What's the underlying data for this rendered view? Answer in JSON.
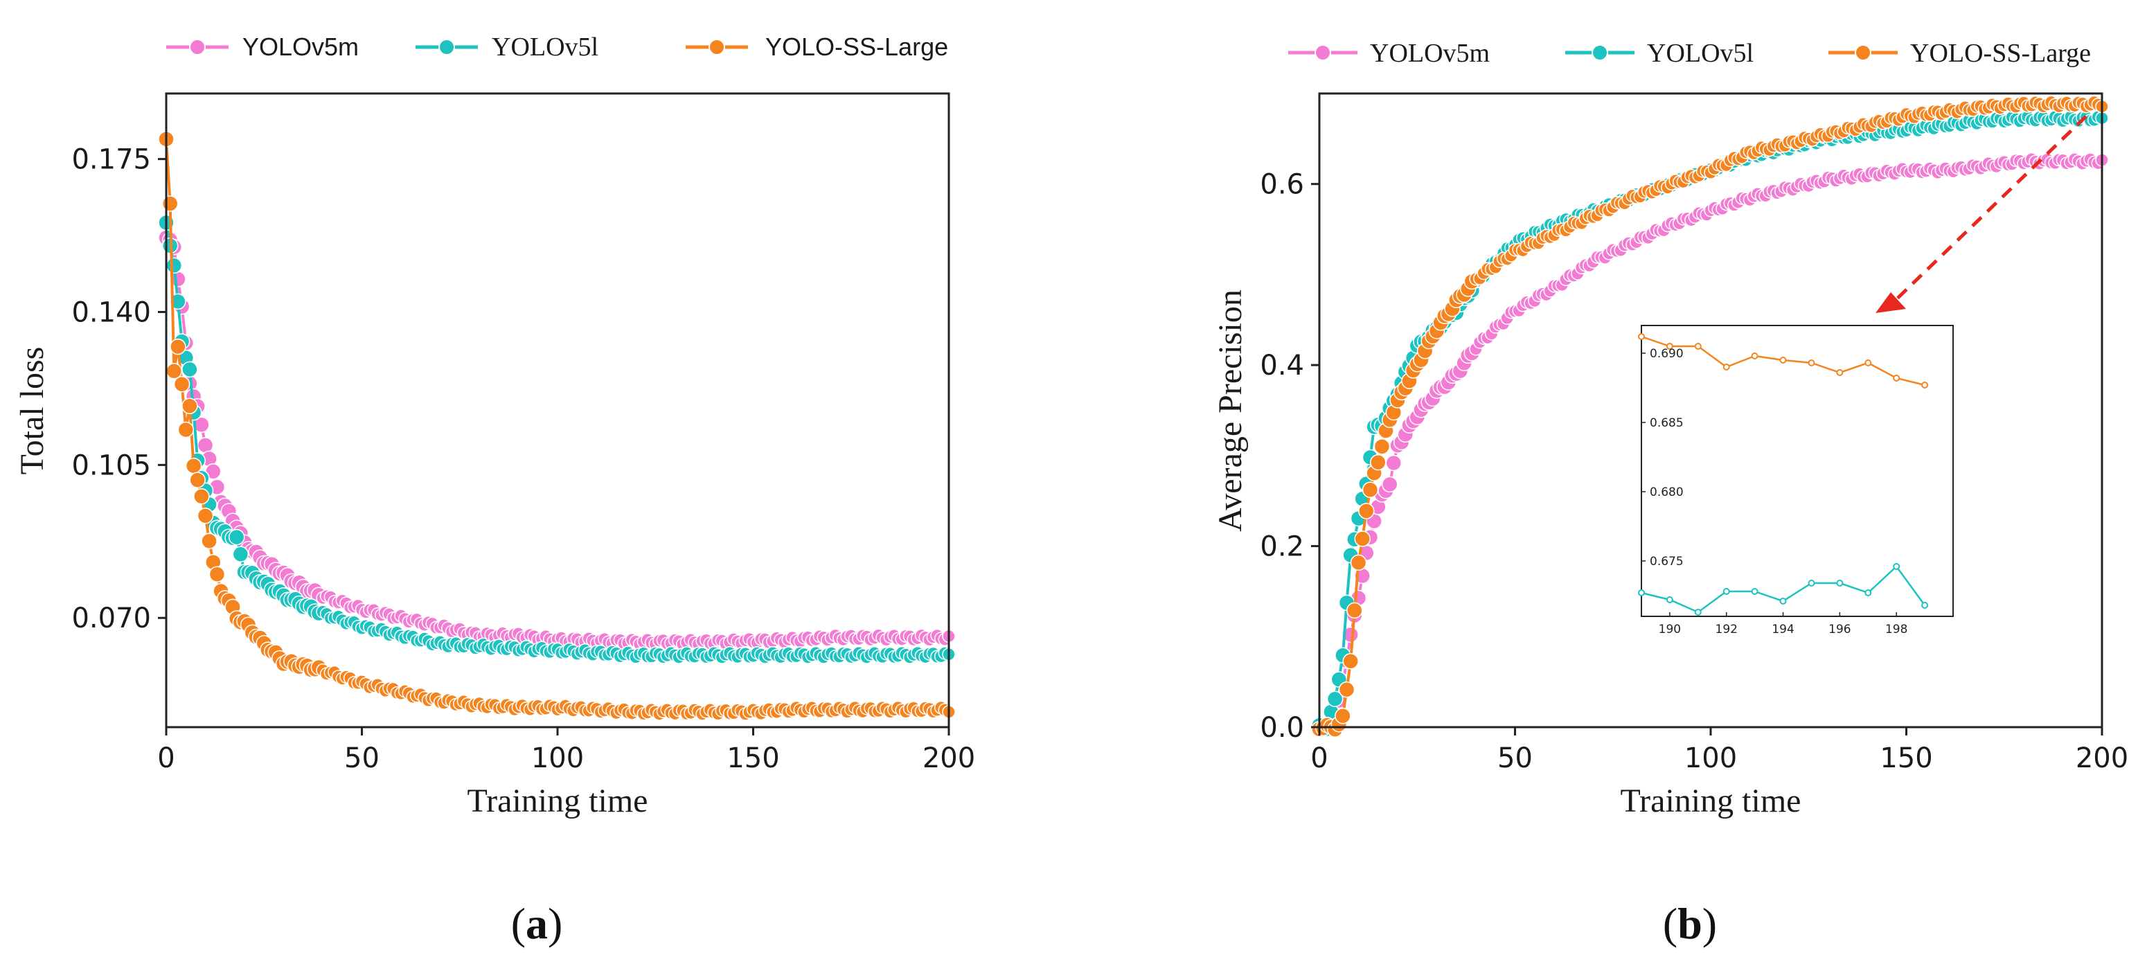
{
  "colors": {
    "YOLOv5m": "#f47bd3",
    "YOLOv5l": "#1cc3c0",
    "YOLO-SS-Large": "#f5841f",
    "arrow": "#e8271e"
  },
  "chart_data": [
    {
      "type": "line",
      "panel": "(a)",
      "panel_letter": "a",
      "xlabel": "Training time",
      "ylabel": "Total loss",
      "xlim": [
        0,
        200
      ],
      "ylim": [
        0.045,
        0.19
      ],
      "xticks": [
        "0",
        "50",
        "100",
        "150",
        "200"
      ],
      "xtick_values": [
        0,
        50,
        100,
        150,
        200
      ],
      "yticks": [
        "0.070",
        "0.105",
        "0.140",
        "0.175"
      ],
      "ytick_values": [
        0.07,
        0.105,
        0.14,
        0.175
      ],
      "legend": [
        "YOLOv5m",
        "YOLOv5l",
        "YOLO-SS-Large"
      ],
      "legend_position": "top",
      "series": [
        {
          "name": "YOLOv5m",
          "keypoints": [
            [
              0,
              0.157
            ],
            [
              2,
              0.155
            ],
            [
              4,
              0.141
            ],
            [
              6,
              0.124
            ],
            [
              8,
              0.118
            ],
            [
              10,
              0.11
            ],
            [
              12,
              0.103
            ],
            [
              14,
              0.097
            ],
            [
              16,
              0.094
            ],
            [
              18,
              0.091
            ],
            [
              20,
              0.087
            ],
            [
              25,
              0.083
            ],
            [
              30,
              0.08
            ],
            [
              35,
              0.077
            ],
            [
              40,
              0.075
            ],
            [
              50,
              0.072
            ],
            [
              60,
              0.07
            ],
            [
              70,
              0.068
            ],
            [
              80,
              0.066
            ],
            [
              90,
              0.066
            ],
            [
              100,
              0.065
            ],
            [
              120,
              0.0645
            ],
            [
              140,
              0.0645
            ],
            [
              160,
              0.065
            ],
            [
              170,
              0.0655
            ],
            [
              200,
              0.0655
            ]
          ]
        },
        {
          "name": "YOLOv5l",
          "keypoints": [
            [
              0,
              0.16
            ],
            [
              2,
              0.151
            ],
            [
              4,
              0.133
            ],
            [
              6,
              0.127
            ],
            [
              8,
              0.106
            ],
            [
              10,
              0.099
            ],
            [
              12,
              0.092
            ],
            [
              14,
              0.09
            ],
            [
              16,
              0.089
            ],
            [
              18,
              0.088
            ],
            [
              20,
              0.081
            ],
            [
              25,
              0.078
            ],
            [
              30,
              0.075
            ],
            [
              40,
              0.071
            ],
            [
              50,
              0.068
            ],
            [
              60,
              0.066
            ],
            [
              70,
              0.064
            ],
            [
              80,
              0.0635
            ],
            [
              90,
              0.063
            ],
            [
              100,
              0.0625
            ],
            [
              120,
              0.0615
            ],
            [
              140,
              0.0615
            ],
            [
              160,
              0.0615
            ],
            [
              200,
              0.0615
            ]
          ]
        },
        {
          "name": "YOLO-SS-Large",
          "keypoints": [
            [
              0,
              0.18
            ],
            [
              1,
              0.165
            ],
            [
              2,
              0.126
            ],
            [
              3,
              0.132
            ],
            [
              4,
              0.124
            ],
            [
              5,
              0.113
            ],
            [
              6,
              0.118
            ],
            [
              7,
              0.105
            ],
            [
              8,
              0.102
            ],
            [
              10,
              0.093
            ],
            [
              12,
              0.083
            ],
            [
              14,
              0.076
            ],
            [
              16,
              0.074
            ],
            [
              18,
              0.07
            ],
            [
              20,
              0.069
            ],
            [
              25,
              0.064
            ],
            [
              30,
              0.06
            ],
            [
              40,
              0.058
            ],
            [
              50,
              0.055
            ],
            [
              60,
              0.053
            ],
            [
              70,
              0.051
            ],
            [
              80,
              0.05
            ],
            [
              90,
              0.0495
            ],
            [
              100,
              0.0495
            ],
            [
              110,
              0.049
            ],
            [
              120,
              0.0485
            ],
            [
              140,
              0.0485
            ],
            [
              150,
              0.0485
            ],
            [
              160,
              0.049
            ],
            [
              200,
              0.049
            ]
          ]
        }
      ]
    },
    {
      "type": "line",
      "panel": "(b)",
      "panel_letter": "b",
      "xlabel": "Training time",
      "ylabel": "Average Precision",
      "xlim": [
        0,
        200
      ],
      "ylim": [
        0,
        0.7
      ],
      "xticks": [
        "0",
        "50",
        "100",
        "150",
        "200"
      ],
      "xtick_values": [
        0,
        50,
        100,
        150,
        200
      ],
      "yticks": [
        "0.0",
        "0.2",
        "0.4",
        "0.6"
      ],
      "ytick_values": [
        0,
        0.2,
        0.4,
        0.6
      ],
      "legend": [
        "YOLOv5m",
        "YOLOv5l",
        "YOLO-SS-Large"
      ],
      "legend_position": "top",
      "series": [
        {
          "name": "YOLOv5m",
          "keypoints": [
            [
              0,
              0
            ],
            [
              3,
              0
            ],
            [
              4,
              0.005
            ],
            [
              6,
              0.05
            ],
            [
              8,
              0.1
            ],
            [
              10,
              0.145
            ],
            [
              12,
              0.19
            ],
            [
              14,
              0.23
            ],
            [
              16,
              0.255
            ],
            [
              18,
              0.27
            ],
            [
              20,
              0.31
            ],
            [
              25,
              0.345
            ],
            [
              30,
              0.37
            ],
            [
              35,
              0.39
            ],
            [
              40,
              0.42
            ],
            [
              45,
              0.44
            ],
            [
              50,
              0.46
            ],
            [
              60,
              0.485
            ],
            [
              70,
              0.515
            ],
            [
              80,
              0.535
            ],
            [
              90,
              0.555
            ],
            [
              100,
              0.57
            ],
            [
              110,
              0.585
            ],
            [
              120,
              0.595
            ],
            [
              130,
              0.605
            ],
            [
              140,
              0.61
            ],
            [
              150,
              0.615
            ],
            [
              160,
              0.615
            ],
            [
              170,
              0.62
            ],
            [
              180,
              0.625
            ],
            [
              200,
              0.625
            ]
          ]
        },
        {
          "name": "YOLOv5l",
          "keypoints": [
            [
              0,
              0
            ],
            [
              2,
              0
            ],
            [
              4,
              0.03
            ],
            [
              6,
              0.08
            ],
            [
              8,
              0.19
            ],
            [
              10,
              0.23
            ],
            [
              12,
              0.27
            ],
            [
              14,
              0.33
            ],
            [
              16,
              0.335
            ],
            [
              18,
              0.35
            ],
            [
              20,
              0.37
            ],
            [
              25,
              0.42
            ],
            [
              30,
              0.44
            ],
            [
              35,
              0.46
            ],
            [
              40,
              0.49
            ],
            [
              45,
              0.515
            ],
            [
              50,
              0.535
            ],
            [
              60,
              0.555
            ],
            [
              70,
              0.57
            ],
            [
              80,
              0.585
            ],
            [
              90,
              0.6
            ],
            [
              100,
              0.615
            ],
            [
              110,
              0.63
            ],
            [
              120,
              0.64
            ],
            [
              130,
              0.65
            ],
            [
              140,
              0.655
            ],
            [
              150,
              0.66
            ],
            [
              160,
              0.665
            ],
            [
              170,
              0.67
            ],
            [
              180,
              0.672
            ],
            [
              200,
              0.672
            ]
          ]
        },
        {
          "name": "YOLO-SS-Large",
          "keypoints": [
            [
              0,
              0
            ],
            [
              4,
              0
            ],
            [
              5,
              0.003
            ],
            [
              6,
              0.01
            ],
            [
              8,
              0.075
            ],
            [
              10,
              0.18
            ],
            [
              12,
              0.24
            ],
            [
              14,
              0.28
            ],
            [
              16,
              0.31
            ],
            [
              18,
              0.34
            ],
            [
              20,
              0.36
            ],
            [
              25,
              0.4
            ],
            [
              30,
              0.44
            ],
            [
              35,
              0.47
            ],
            [
              40,
              0.495
            ],
            [
              45,
              0.51
            ],
            [
              50,
              0.525
            ],
            [
              60,
              0.545
            ],
            [
              70,
              0.565
            ],
            [
              80,
              0.585
            ],
            [
              90,
              0.6
            ],
            [
              100,
              0.615
            ],
            [
              110,
              0.635
            ],
            [
              120,
              0.645
            ],
            [
              130,
              0.655
            ],
            [
              140,
              0.665
            ],
            [
              150,
              0.675
            ],
            [
              160,
              0.68
            ],
            [
              170,
              0.685
            ],
            [
              180,
              0.688
            ],
            [
              200,
              0.688
            ]
          ]
        }
      ],
      "inset": {
        "xlim": [
          189,
          200
        ],
        "ylim": [
          0.671,
          0.692
        ],
        "xticks": [
          "190",
          "192",
          "194",
          "196",
          "198"
        ],
        "xtick_values": [
          190,
          192,
          194,
          196,
          198
        ],
        "yticks": [
          "0.675",
          "0.680",
          "0.685",
          "0.690"
        ],
        "ytick_values": [
          0.675,
          0.68,
          0.685,
          0.69
        ],
        "series": [
          {
            "name": "YOLO-SS-Large",
            "x": [
              189,
              190,
              191,
              192,
              193,
              194,
              195,
              196,
              197,
              198,
              199
            ],
            "y": [
              0.6912,
              0.6905,
              0.6905,
              0.689,
              0.6898,
              0.6895,
              0.6893,
              0.6886,
              0.6893,
              0.6882,
              0.6877
            ]
          },
          {
            "name": "YOLOv5l",
            "x": [
              189,
              190,
              191,
              192,
              193,
              194,
              195,
              196,
              197,
              198,
              199
            ],
            "y": [
              0.6727,
              0.6722,
              0.6713,
              0.6728,
              0.6728,
              0.6721,
              0.6734,
              0.6734,
              0.6727,
              0.6746,
              0.6718
            ]
          }
        ]
      }
    }
  ]
}
